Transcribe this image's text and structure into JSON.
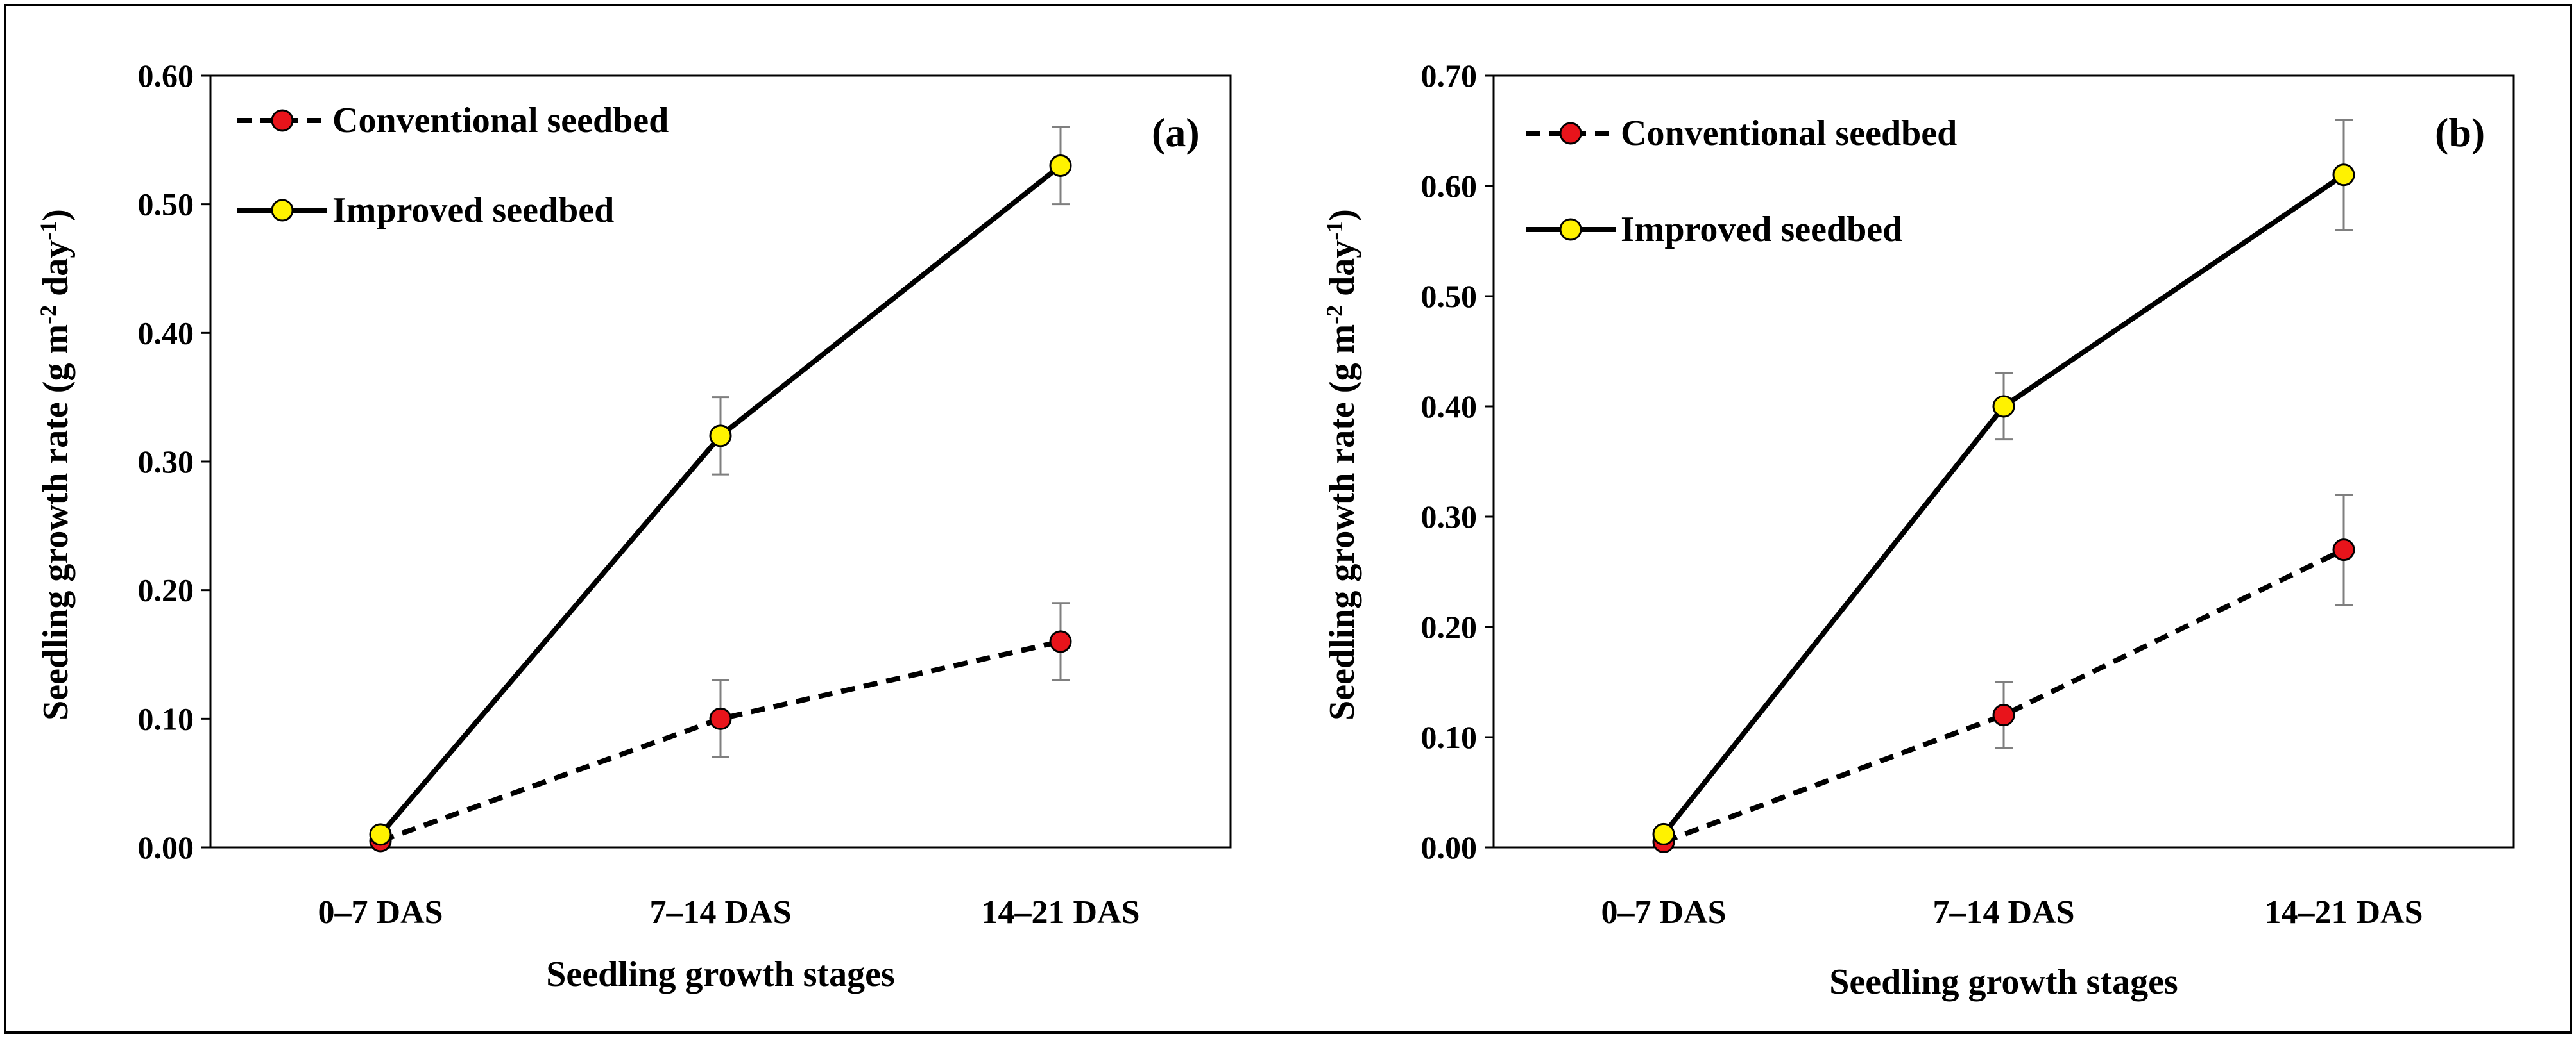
{
  "chart_data": [
    {
      "type": "line",
      "panel_label": "(a)",
      "categories": [
        "0–7 DAS",
        "7–14 DAS",
        "14–21 DAS"
      ],
      "xlabel": "Seedling growth stages",
      "ylabel": "Seedling growth rate (g m",
      "ylabel_sup1": "-2",
      "ylabel_mid": " day",
      "ylabel_sup2": "-1",
      "ylabel_end": ")",
      "ylim": [
        0,
        0.6
      ],
      "yticks": [
        "0.00",
        "0.10",
        "0.20",
        "0.30",
        "0.40",
        "0.50",
        "0.60"
      ],
      "legend_position": "top-left",
      "grid": false,
      "series": [
        {
          "name": "Conventional seedbed",
          "values": [
            0.005,
            0.1,
            0.16
          ],
          "errors": [
            0.0,
            0.03,
            0.03
          ],
          "color": "#e8141b",
          "line_style": "dashed"
        },
        {
          "name": "Improved seedbed",
          "values": [
            0.01,
            0.32,
            0.53
          ],
          "errors": [
            0.0,
            0.03,
            0.03
          ],
          "color": "#fff200",
          "line_style": "solid"
        }
      ]
    },
    {
      "type": "line",
      "panel_label": "(b)",
      "categories": [
        "0–7 DAS",
        "7–14 DAS",
        "14–21 DAS"
      ],
      "xlabel": "Seedling growth stages",
      "ylabel": "Seedling growth rate (g m",
      "ylabel_sup1": "-2",
      "ylabel_mid": " day",
      "ylabel_sup2": "-1",
      "ylabel_end": ")",
      "ylim": [
        0,
        0.7
      ],
      "yticks": [
        "0.00",
        "0.10",
        "0.20",
        "0.30",
        "0.40",
        "0.50",
        "0.60",
        "0.70"
      ],
      "legend_position": "top-left",
      "grid": false,
      "series": [
        {
          "name": "Conventional seedbed",
          "values": [
            0.005,
            0.12,
            0.27
          ],
          "errors": [
            0.0,
            0.03,
            0.05
          ],
          "color": "#e8141b",
          "line_style": "dashed"
        },
        {
          "name": "Improved seedbed",
          "values": [
            0.012,
            0.4,
            0.61
          ],
          "errors": [
            0.0,
            0.03,
            0.05
          ],
          "color": "#fff200",
          "line_style": "solid"
        }
      ]
    }
  ]
}
